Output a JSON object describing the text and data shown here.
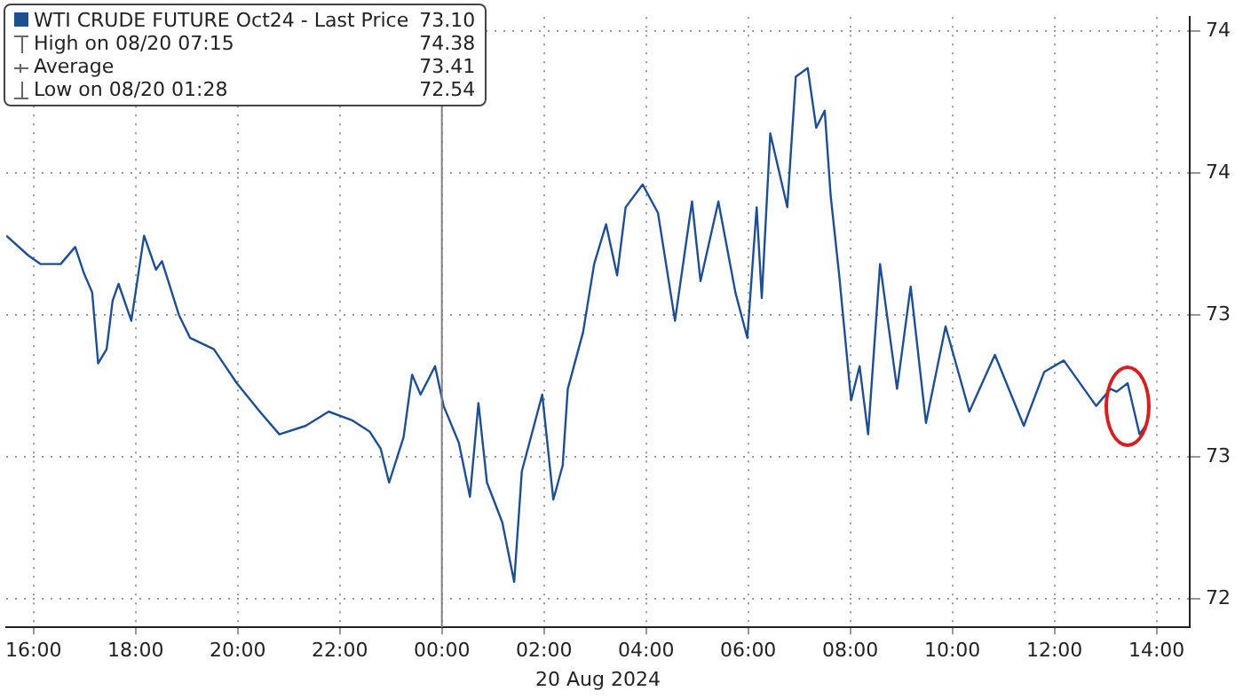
{
  "chart_data": {
    "type": "line",
    "xlabel": "20 Aug 2024",
    "legend": "top left",
    "grid": true,
    "marker": "none",
    "line_style": "solid",
    "xlim": [
      "2024-08-19T15:28",
      "2024-08-20T14:39"
    ],
    "xticks": [
      {
        "value": "2024-08-19T16:00",
        "label": "16:00"
      },
      {
        "value": "2024-08-19T18:00",
        "label": "18:00"
      },
      {
        "value": "2024-08-19T20:00",
        "label": "20:00"
      },
      {
        "value": "2024-08-19T22:00",
        "label": "22:00"
      },
      {
        "value": "2024-08-20T00:00",
        "label": "00:00"
      },
      {
        "value": "2024-08-20T02:00",
        "label": "02:00"
      },
      {
        "value": "2024-08-20T04:00",
        "label": "04:00"
      },
      {
        "value": "2024-08-20T06:00",
        "label": "06:00"
      },
      {
        "value": "2024-08-20T08:00",
        "label": "08:00"
      },
      {
        "value": "2024-08-20T10:00",
        "label": "10:00"
      },
      {
        "value": "2024-08-20T12:00",
        "label": "12:00"
      },
      {
        "value": "2024-08-20T14:00",
        "label": "14:00"
      }
    ],
    "ylim": [
      72.4,
      74.55
    ],
    "yticks": [
      {
        "value": 72.5,
        "label": "72"
      },
      {
        "value": 73,
        "label": "73"
      },
      {
        "value": 73.5,
        "label": "73"
      },
      {
        "value": 74,
        "label": "74"
      },
      {
        "value": 74.5,
        "label": "74"
      }
    ],
    "ref_lines": [
      {
        "axis": "x",
        "value": "2024-08-20T00:00",
        "color": "#808080"
      }
    ],
    "annotations": [
      "High on 08/20 07:15 74.38",
      "Average 73.41",
      "Low on 08/20 01:28 72.54"
    ],
    "series": [
      {
        "name": "WTI CRUDE FUTURE Oct24 - Last Price 73.10",
        "color": "#1f4f8f",
        "x": [
          "2024-08-19T15:28",
          "2024-08-19T15:54",
          "2024-08-19T16:08",
          "2024-08-19T16:32",
          "2024-08-19T16:49",
          "2024-08-19T16:59",
          "2024-08-19T17:09",
          "2024-08-19T17:16",
          "2024-08-19T17:26",
          "2024-08-19T17:33",
          "2024-08-19T17:40",
          "2024-08-19T17:55",
          "2024-08-19T18:10",
          "2024-08-19T18:24",
          "2024-08-19T18:31",
          "2024-08-19T18:51",
          "2024-08-19T19:04",
          "2024-08-19T19:32",
          "2024-08-19T19:59",
          "2024-08-19T20:26",
          "2024-08-19T20:49",
          "2024-08-19T21:20",
          "2024-08-19T21:47",
          "2024-08-19T22:14",
          "2024-08-19T22:35",
          "2024-08-19T22:48",
          "2024-08-19T22:58",
          "2024-08-19T23:15",
          "2024-08-19T23:25",
          "2024-08-19T23:35",
          "2024-08-19T23:52",
          "2024-08-20T00:02",
          "2024-08-20T00:20",
          "2024-08-20T00:33",
          "2024-08-20T00:43",
          "2024-08-20T00:53",
          "2024-08-20T01:11",
          "2024-08-20T01:25",
          "2024-08-20T01:34",
          "2024-08-20T01:58",
          "2024-08-20T02:11",
          "2024-08-20T02:22",
          "2024-08-20T02:28",
          "2024-08-20T02:46",
          "2024-08-20T02:59",
          "2024-08-20T03:13",
          "2024-08-20T03:26",
          "2024-08-20T03:36",
          "2024-08-20T03:56",
          "2024-08-20T04:14",
          "2024-08-20T04:34",
          "2024-08-20T04:54",
          "2024-08-20T05:04",
          "2024-08-20T05:25",
          "2024-08-20T05:45",
          "2024-08-20T05:59",
          "2024-08-20T06:10",
          "2024-08-20T06:16",
          "2024-08-20T06:26",
          "2024-08-20T06:46",
          "2024-08-20T06:56",
          "2024-08-20T07:10",
          "2024-08-20T07:20",
          "2024-08-20T07:30",
          "2024-08-20T07:37",
          "2024-08-20T07:47",
          "2024-08-20T08:01",
          "2024-08-20T08:11",
          "2024-08-20T08:21",
          "2024-08-20T08:35",
          "2024-08-20T08:55",
          "2024-08-20T09:11",
          "2024-08-20T09:29",
          "2024-08-20T09:52",
          "2024-08-20T10:20",
          "2024-08-20T10:50",
          "2024-08-20T11:24",
          "2024-08-20T11:48",
          "2024-08-20T12:11",
          "2024-08-20T12:49",
          "2024-08-20T13:06",
          "2024-08-20T13:13",
          "2024-08-20T13:26",
          "2024-08-20T13:40",
          "2024-08-20T13:47"
        ],
        "values": [
          73.78,
          73.71,
          73.68,
          73.68,
          73.74,
          73.65,
          73.58,
          73.33,
          73.38,
          73.55,
          73.61,
          73.48,
          73.78,
          73.66,
          73.69,
          73.5,
          73.42,
          73.38,
          73.26,
          73.16,
          73.08,
          73.11,
          73.16,
          73.13,
          73.09,
          73.03,
          72.91,
          73.07,
          73.29,
          73.22,
          73.32,
          73.18,
          73.05,
          72.86,
          73.19,
          72.91,
          72.77,
          72.56,
          72.95,
          73.22,
          72.85,
          72.97,
          73.24,
          73.44,
          73.68,
          73.82,
          73.64,
          73.88,
          73.96,
          73.86,
          73.48,
          73.9,
          73.62,
          73.9,
          73.58,
          73.42,
          73.88,
          73.56,
          74.14,
          73.88,
          74.34,
          74.37,
          74.16,
          74.22,
          73.92,
          73.64,
          73.2,
          73.32,
          73.08,
          73.68,
          73.24,
          73.6,
          73.12,
          73.46,
          73.16,
          73.36,
          73.11,
          73.3,
          73.34,
          73.18,
          73.24,
          73.23,
          73.26,
          73.08,
          73.11
        ]
      }
    ]
  }
}
